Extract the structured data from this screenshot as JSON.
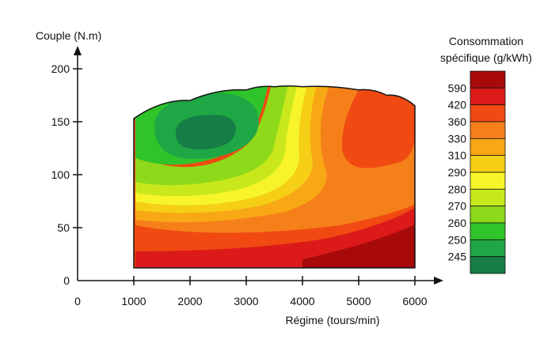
{
  "chart_data": {
    "type": "heatmap",
    "title": "",
    "xlabel": "Régime (tours/min)",
    "ylabel": "Couple (N.m)",
    "xlim": [
      0,
      6000
    ],
    "ylim": [
      0,
      200
    ],
    "x_ticks": [
      0,
      1000,
      2000,
      3000,
      4000,
      5000,
      6000
    ],
    "y_ticks": [
      0,
      50,
      100,
      150,
      200
    ],
    "colorbar": {
      "title_line1": "Consommation",
      "title_line2": "spécifique (g/kWh)",
      "labels": [
        "590",
        "420",
        "360",
        "330",
        "310",
        "290",
        "280",
        "270",
        "260",
        "250",
        "245"
      ],
      "colors": [
        "#a80a0a",
        "#dc1a1a",
        "#f04a12",
        "#f5801a",
        "#f8a814",
        "#f5cf16",
        "#f7f52a",
        "#c9e81c",
        "#8ed91a",
        "#2ec42a",
        "#1fa745",
        "#157d45"
      ]
    },
    "envelope": {
      "x": [
        1000,
        2000,
        3000,
        3500,
        4000,
        5000,
        5500,
        6000
      ],
      "y_max": [
        153,
        170,
        180,
        183,
        183,
        180,
        175,
        165
      ],
      "y_min": 12
    },
    "regions": [
      {
        "value": ">590",
        "points": [
          [
            4000,
            20
          ],
          [
            5000,
            33
          ],
          [
            6000,
            53
          ],
          [
            6000,
            12
          ],
          [
            4000,
            12
          ]
        ]
      },
      {
        "value": "245",
        "centroid": [
          2200,
          133
        ]
      }
    ]
  }
}
